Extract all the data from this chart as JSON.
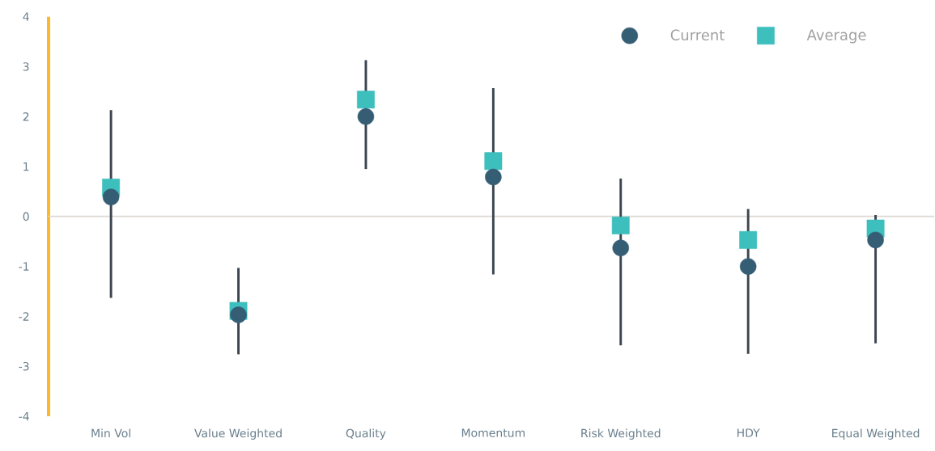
{
  "chart_data": {
    "type": "scatter",
    "categories": [
      "Min Vol",
      "Value Weighted",
      "Quality",
      "Momentum",
      "Risk Weighted",
      "HDY",
      "Equal Weighted"
    ],
    "series": [
      {
        "name": "Current",
        "color": "#355e75",
        "marker": "circle",
        "values": [
          0.39,
          -1.97,
          2.0,
          0.79,
          -0.63,
          -1.0,
          -0.47
        ],
        "errors": [
          [
            -1.63,
            2.13
          ],
          [
            -2.76,
            -1.03
          ],
          [
            0.95,
            3.13
          ],
          [
            -1.16,
            2.57
          ],
          [
            -2.58,
            0.76
          ],
          [
            -2.75,
            0.15
          ],
          [
            -2.54,
            0.03
          ]
        ]
      },
      {
        "name": "Average",
        "color": "#3dbfbd",
        "marker": "square",
        "values": [
          0.58,
          -1.89,
          2.34,
          1.11,
          -0.18,
          -0.47,
          -0.24
        ]
      }
    ],
    "ylim": [
      -4,
      4
    ],
    "yticks": [
      -4,
      -3,
      -2,
      -1,
      0,
      1,
      2,
      3,
      4
    ],
    "ref_lines": [
      {
        "axis": "y",
        "value": 0,
        "color": "#ddd8d2"
      }
    ],
    "grid": false,
    "legend": "top right"
  }
}
